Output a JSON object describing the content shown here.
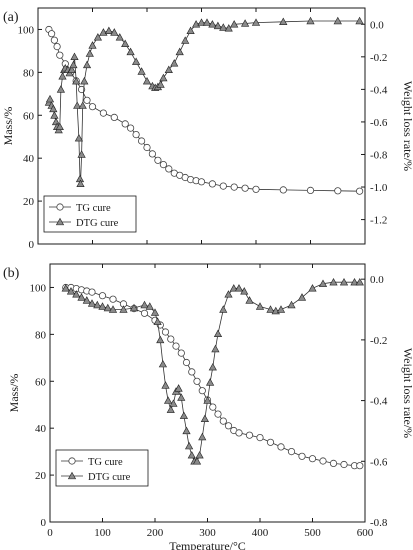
{
  "chart_data": [
    {
      "panel_label": "(a)",
      "type": "scatter",
      "ylabel_left": "Mass/%",
      "ylabel_right": "Weight loss rate/%",
      "xlim": [
        0,
        600
      ],
      "ylim_left": [
        0,
        110
      ],
      "ylim_right": [
        -1.35,
        0.1
      ],
      "yticks_left": [
        "0",
        "20",
        "40",
        "60",
        "80",
        "100"
      ],
      "yticks_right": [
        "0.0",
        "-0.2",
        "-0.4",
        "-0.6",
        "-0.8",
        "-1.0",
        "-1.2"
      ],
      "legend_position": "bottom-left",
      "series": [
        {
          "name": "TG cure",
          "axis": "left",
          "marker": "circle",
          "x": [
            20,
            25,
            30,
            35,
            40,
            50,
            60,
            70,
            80,
            90,
            100,
            120,
            140,
            160,
            170,
            180,
            190,
            200,
            210,
            220,
            230,
            240,
            250,
            260,
            270,
            280,
            290,
            300,
            320,
            340,
            360,
            380,
            400,
            450,
            500,
            550,
            590
          ],
          "values": [
            100,
            98,
            95,
            92,
            88,
            84,
            80,
            76,
            72,
            67,
            64,
            61,
            59,
            56,
            54,
            51,
            48,
            45,
            42,
            39,
            37,
            35,
            33,
            32,
            31,
            30,
            29.5,
            29,
            28,
            27,
            26.5,
            26,
            25.5,
            25.2,
            25,
            24.8,
            24.6
          ]
        },
        {
          "name": "DTG cure",
          "axis": "right",
          "marker": "triangle",
          "x": [
            20,
            22,
            25,
            28,
            30,
            33,
            35,
            38,
            40,
            42,
            45,
            48,
            50,
            55,
            58,
            62,
            65,
            67,
            70,
            72,
            75,
            77,
            78,
            80,
            82,
            85,
            90,
            95,
            100,
            110,
            120,
            130,
            140,
            150,
            160,
            170,
            180,
            190,
            200,
            210,
            215,
            220,
            225,
            230,
            240,
            250,
            260,
            270,
            280,
            290,
            300,
            310,
            320,
            330,
            340,
            350,
            360,
            380,
            400,
            450,
            500,
            550,
            590
          ],
          "values": [
            -0.48,
            -0.46,
            -0.5,
            -0.52,
            -0.56,
            -0.6,
            -0.63,
            -0.65,
            -0.63,
            -0.4,
            -0.32,
            -0.28,
            -0.27,
            -0.28,
            -0.3,
            -0.28,
            -0.25,
            -0.2,
            -0.35,
            -0.5,
            -0.7,
            -0.95,
            -0.98,
            -0.8,
            -0.5,
            -0.35,
            -0.25,
            -0.18,
            -0.13,
            -0.08,
            -0.05,
            -0.04,
            -0.05,
            -0.08,
            -0.12,
            -0.17,
            -0.23,
            -0.29,
            -0.35,
            -0.38,
            -0.39,
            -0.385,
            -0.37,
            -0.33,
            -0.28,
            -0.24,
            -0.17,
            -0.1,
            -0.04,
            0.0,
            0.01,
            0.01,
            0.0,
            -0.01,
            -0.02,
            -0.025,
            0.0,
            0.005,
            0.01,
            0.015,
            0.02,
            0.02,
            0.02
          ]
        }
      ]
    },
    {
      "panel_label": "(b)",
      "type": "scatter",
      "xlabel": "Temperature/°C",
      "ylabel_left": "Mass/%",
      "ylabel_right": "Weight loss rate/%",
      "xlim": [
        0,
        600
      ],
      "ylim_left": [
        0,
        110
      ],
      "ylim_right": [
        -0.8,
        0.05
      ],
      "xticks": [
        "0",
        "100",
        "200",
        "300",
        "400",
        "500",
        "600"
      ],
      "yticks_left": [
        "0",
        "20",
        "40",
        "60",
        "80",
        "100"
      ],
      "yticks_right": [
        "0.0",
        "-0.2",
        "-0.4",
        "-0.6",
        "-0.8"
      ],
      "legend_position": "bottom-left",
      "series": [
        {
          "name": "TG cure",
          "axis": "left",
          "marker": "circle",
          "x": [
            30,
            40,
            50,
            60,
            70,
            80,
            100,
            120,
            140,
            160,
            180,
            200,
            210,
            220,
            230,
            240,
            250,
            260,
            270,
            280,
            290,
            300,
            310,
            320,
            330,
            340,
            350,
            360,
            380,
            400,
            420,
            440,
            460,
            480,
            500,
            520,
            540,
            560,
            580,
            590
          ],
          "values": [
            100,
            100,
            99.5,
            99,
            98.5,
            98,
            96.5,
            95,
            93,
            91,
            89,
            86,
            84,
            81,
            78,
            75,
            72,
            68,
            64,
            60,
            56,
            52,
            49,
            46,
            43,
            41,
            39,
            38,
            37,
            36,
            34,
            32,
            30,
            28,
            27,
            26,
            25,
            24.5,
            24,
            24
          ]
        },
        {
          "name": "DTG cure",
          "axis": "right",
          "marker": "triangle",
          "x": [
            30,
            40,
            50,
            60,
            70,
            80,
            90,
            100,
            110,
            120,
            140,
            160,
            180,
            190,
            200,
            205,
            210,
            215,
            220,
            225,
            230,
            235,
            240,
            245,
            250,
            255,
            260,
            265,
            270,
            275,
            280,
            285,
            290,
            295,
            300,
            305,
            310,
            315,
            320,
            330,
            340,
            350,
            360,
            370,
            380,
            400,
            420,
            430,
            440,
            460,
            480,
            500,
            520,
            540,
            560,
            580,
            590
          ],
          "values": [
            -0.03,
            -0.04,
            -0.05,
            -0.06,
            -0.07,
            -0.08,
            -0.085,
            -0.09,
            -0.095,
            -0.1,
            -0.1,
            -0.095,
            -0.085,
            -0.09,
            -0.11,
            -0.14,
            -0.2,
            -0.28,
            -0.35,
            -0.4,
            -0.43,
            -0.41,
            -0.37,
            -0.36,
            -0.39,
            -0.45,
            -0.5,
            -0.55,
            -0.58,
            -0.6,
            -0.6,
            -0.58,
            -0.52,
            -0.46,
            -0.4,
            -0.34,
            -0.29,
            -0.23,
            -0.18,
            -0.1,
            -0.05,
            -0.03,
            -0.03,
            -0.04,
            -0.07,
            -0.09,
            -0.1,
            -0.105,
            -0.1,
            -0.085,
            -0.06,
            -0.03,
            -0.015,
            -0.01,
            -0.01,
            -0.01,
            -0.01
          ]
        }
      ]
    }
  ]
}
